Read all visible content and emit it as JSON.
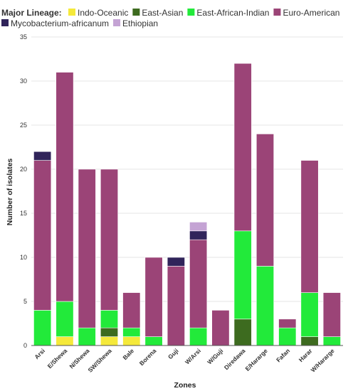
{
  "chart_data": {
    "type": "bar",
    "stacked": true,
    "legend_title": "Major Lineage:",
    "legend_position": "top-left",
    "xlabel": "Zones",
    "ylabel": "Number of isolates",
    "ylim": [
      0,
      35
    ],
    "yticks": [
      0,
      5,
      10,
      15,
      20,
      25,
      30,
      35
    ],
    "grid": true,
    "categories": [
      "Arsi",
      "E/Shewa",
      "N/Shewa",
      "SW/Shewa",
      "Bale",
      "Borena",
      "Guji",
      "W/Arsi",
      "W/Guji",
      "Diredawa",
      "E/Hararge",
      "Fafan",
      "Harar",
      "W/Hararge"
    ],
    "series": [
      {
        "name": "Indo-Oceanic",
        "color": "#f5e93a",
        "values": [
          0,
          1,
          0,
          1,
          1,
          0,
          0,
          0,
          0,
          0,
          0,
          0,
          0,
          0
        ]
      },
      {
        "name": "East-Asian",
        "color": "#3d6b1f",
        "values": [
          0,
          0,
          0,
          1,
          0,
          0,
          0,
          0,
          0,
          3,
          0,
          0,
          1,
          0
        ]
      },
      {
        "name": "East-African-Indian",
        "color": "#22ea3a",
        "values": [
          4,
          4,
          2,
          2,
          1,
          1,
          0,
          2,
          0,
          10,
          9,
          2,
          5,
          1
        ]
      },
      {
        "name": "Euro-American",
        "color": "#9b4477",
        "values": [
          17,
          26,
          18,
          16,
          4,
          9,
          9,
          10,
          4,
          19,
          15,
          1,
          15,
          5
        ]
      },
      {
        "name": "Mycobacterium-africanum",
        "color": "#30245a",
        "values": [
          1,
          0,
          0,
          0,
          0,
          0,
          1,
          1,
          0,
          0,
          0,
          0,
          0,
          0
        ]
      },
      {
        "name": "Ethiopian",
        "color": "#c4a3d4",
        "values": [
          0,
          0,
          0,
          0,
          0,
          0,
          0,
          1,
          0,
          0,
          0,
          0,
          0,
          0
        ]
      }
    ]
  }
}
